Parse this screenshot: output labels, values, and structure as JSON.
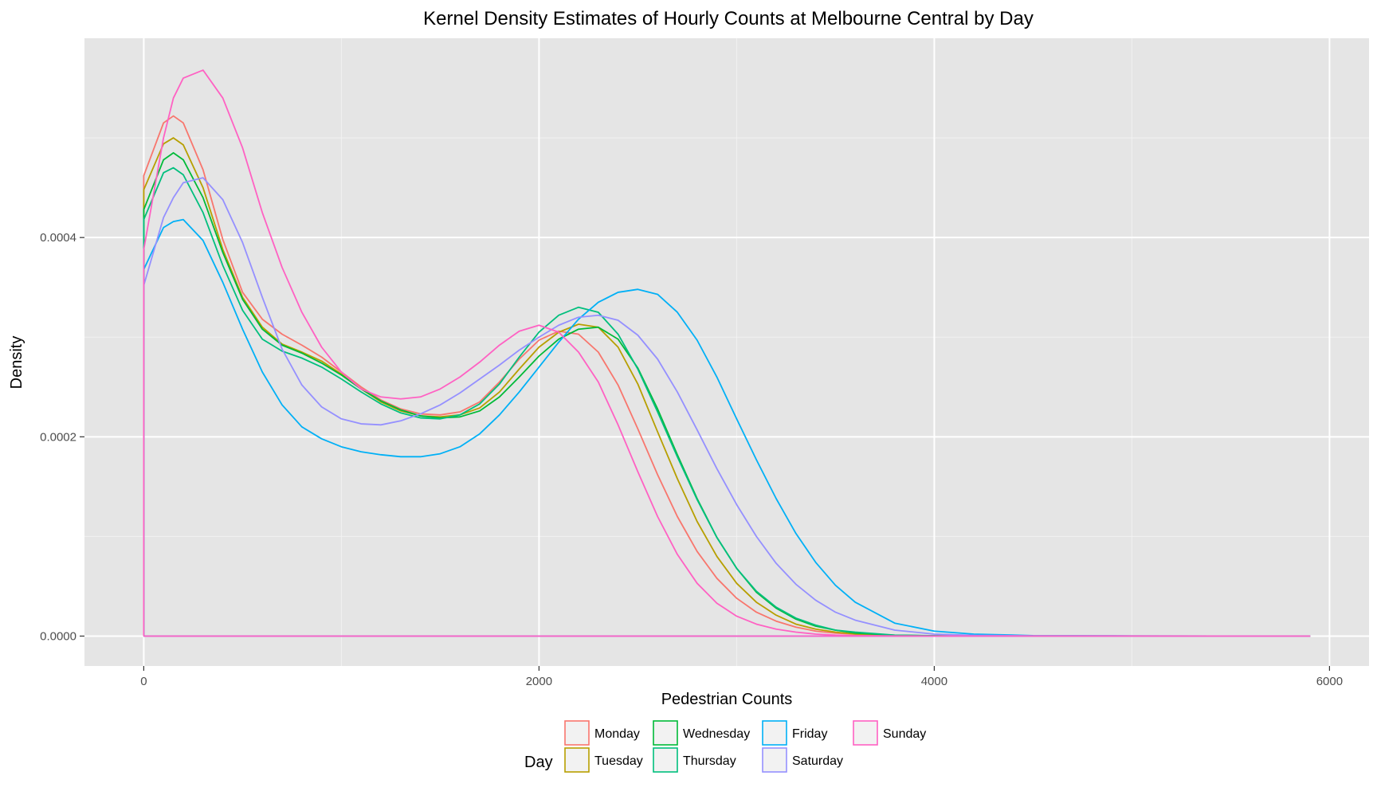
{
  "chart_data": {
    "type": "line",
    "title": "Kernel Density Estimates of Hourly Counts at Melbourne Central by Day",
    "xlabel": "Pedestrian Counts",
    "ylabel": "Density",
    "xlim": [
      -300,
      6200
    ],
    "ylim": [
      -3e-05,
      0.0006
    ],
    "x_ticks": [
      0,
      2000,
      4000,
      6000
    ],
    "x_tick_labels": [
      "0",
      "2000",
      "4000",
      "6000"
    ],
    "y_ticks": [
      0,
      0.0002,
      0.0004
    ],
    "y_tick_labels": [
      "0.0000",
      "0.0002",
      "0.0004"
    ],
    "grid": true,
    "legend": {
      "title": "Day",
      "position": "bottom",
      "columns": [
        [
          "Monday",
          "Tuesday"
        ],
        [
          "Wednesday",
          "Thursday"
        ],
        [
          "Friday",
          "Saturday"
        ],
        [
          "Sunday"
        ]
      ]
    },
    "x": [
      0,
      100,
      150,
      200,
      300,
      400,
      500,
      600,
      700,
      800,
      900,
      1000,
      1100,
      1200,
      1300,
      1400,
      1500,
      1600,
      1700,
      1800,
      1900,
      2000,
      2100,
      2200,
      2300,
      2400,
      2500,
      2600,
      2700,
      2800,
      2900,
      3000,
      3100,
      3200,
      3300,
      3400,
      3500,
      3600,
      3800,
      4000,
      4200,
      4500,
      5000,
      5900
    ],
    "series": [
      {
        "name": "Monday",
        "color": "#F8766D",
        "values": [
          0.000462,
          0.000515,
          0.000522,
          0.000515,
          0.000468,
          0.000398,
          0.000345,
          0.000318,
          0.000303,
          0.000292,
          0.00028,
          0.000265,
          0.00025,
          0.000237,
          0.000228,
          0.000223,
          0.000222,
          0.000225,
          0.000235,
          0.000255,
          0.000278,
          0.000297,
          0.000306,
          0.000303,
          0.000285,
          0.000252,
          0.000208,
          0.000162,
          0.00012,
          8.5e-05,
          5.8e-05,
          3.8e-05,
          2.4e-05,
          1.5e-05,
          9e-06,
          5e-06,
          3e-06,
          2e-06,
          5e-07,
          2e-07,
          1e-07,
          5e-08,
          2e-08,
          0.0
        ]
      },
      {
        "name": "Tuesday",
        "color": "#B79F00",
        "values": [
          0.000448,
          0.000494,
          0.0005,
          0.000493,
          0.00045,
          0.000388,
          0.00034,
          0.00031,
          0.000293,
          0.000285,
          0.000276,
          0.000263,
          0.000248,
          0.000235,
          0.000226,
          0.000221,
          0.00022,
          0.000222,
          0.000229,
          0.000245,
          0.000268,
          0.00029,
          0.000305,
          0.000313,
          0.00031,
          0.00029,
          0.000253,
          0.000205,
          0.000158,
          0.000115,
          8e-05,
          5.3e-05,
          3.4e-05,
          2.1e-05,
          1.2e-05,
          7e-06,
          4e-06,
          2e-06,
          6e-07,
          2e-07,
          1e-07,
          5e-08,
          2e-08,
          0.0
        ]
      },
      {
        "name": "Wednesday",
        "color": "#00BA38",
        "values": [
          0.000428,
          0.000478,
          0.000485,
          0.000478,
          0.00044,
          0.000385,
          0.000338,
          0.000308,
          0.000292,
          0.000284,
          0.000274,
          0.000262,
          0.000248,
          0.000236,
          0.000227,
          0.000221,
          0.000219,
          0.00022,
          0.000226,
          0.00024,
          0.00026,
          0.000281,
          0.000298,
          0.000308,
          0.00031,
          0.000298,
          0.000269,
          0.000228,
          0.000182,
          0.000138,
          9.9e-05,
          6.8e-05,
          4.4e-05,
          2.8e-05,
          1.7e-05,
          1e-05,
          6e-06,
          3e-06,
          9e-07,
          3e-07,
          1e-07,
          5e-08,
          2e-08,
          0.0
        ]
      },
      {
        "name": "Thursday",
        "color": "#00BF7D",
        "values": [
          0.000418,
          0.000465,
          0.00047,
          0.000463,
          0.000425,
          0.000372,
          0.000327,
          0.000298,
          0.000286,
          0.000279,
          0.00027,
          0.000258,
          0.000245,
          0.000233,
          0.000224,
          0.000219,
          0.000218,
          0.000222,
          0.000233,
          0.000253,
          0.00028,
          0.000305,
          0.000322,
          0.00033,
          0.000325,
          0.000303,
          0.000268,
          0.000225,
          0.00018,
          0.000137,
          9.9e-05,
          6.8e-05,
          4.5e-05,
          2.9e-05,
          1.8e-05,
          1.1e-05,
          6e-06,
          4e-06,
          1e-06,
          4e-07,
          1e-07,
          5e-08,
          2e-08,
          0.0
        ]
      },
      {
        "name": "Friday",
        "color": "#00B0F6",
        "values": [
          0.000368,
          0.00041,
          0.000416,
          0.000418,
          0.000397,
          0.000355,
          0.000308,
          0.000265,
          0.000232,
          0.00021,
          0.000198,
          0.00019,
          0.000185,
          0.000182,
          0.00018,
          0.00018,
          0.000183,
          0.00019,
          0.000203,
          0.000222,
          0.000245,
          0.00027,
          0.000295,
          0.000318,
          0.000335,
          0.000345,
          0.000348,
          0.000343,
          0.000325,
          0.000297,
          0.00026,
          0.000218,
          0.000177,
          0.000138,
          0.000103,
          7.4e-05,
          5.1e-05,
          3.4e-05,
          1.3e-05,
          5e-06,
          2e-06,
          5e-07,
          2e-07,
          0.0
        ]
      },
      {
        "name": "Saturday",
        "color": "#9590FF",
        "values": [
          0.000352,
          0.00042,
          0.00044,
          0.000455,
          0.00046,
          0.000438,
          0.000395,
          0.00034,
          0.000288,
          0.000252,
          0.00023,
          0.000218,
          0.000213,
          0.000212,
          0.000216,
          0.000223,
          0.000232,
          0.000244,
          0.000258,
          0.000272,
          0.000287,
          0.0003,
          0.000312,
          0.00032,
          0.000322,
          0.000317,
          0.000302,
          0.000278,
          0.000245,
          0.000207,
          0.000168,
          0.000132,
          0.0001,
          7.3e-05,
          5.2e-05,
          3.6e-05,
          2.4e-05,
          1.6e-05,
          6e-06,
          2e-06,
          8e-07,
          3e-07,
          2e-07,
          0.0
        ]
      },
      {
        "name": "Sunday",
        "color": "#FF61C3",
        "values": [
          0.000388,
          0.0005,
          0.00054,
          0.00056,
          0.000568,
          0.00054,
          0.00049,
          0.000425,
          0.00037,
          0.000325,
          0.00029,
          0.000265,
          0.000248,
          0.00024,
          0.000238,
          0.00024,
          0.000248,
          0.00026,
          0.000275,
          0.000292,
          0.000306,
          0.000312,
          0.000305,
          0.000285,
          0.000255,
          0.000212,
          0.000165,
          0.00012,
          8.2e-05,
          5.3e-05,
          3.3e-05,
          2e-05,
          1.2e-05,
          7e-06,
          4e-06,
          2e-06,
          1e-06,
          6e-07,
          2e-07,
          1e-07,
          5e-08,
          2e-08,
          1e-08,
          0.0
        ]
      }
    ]
  }
}
